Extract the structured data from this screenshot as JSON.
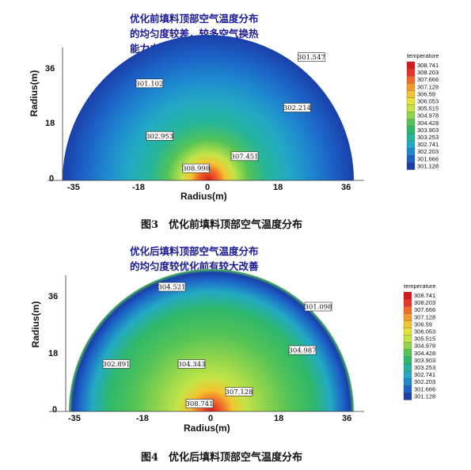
{
  "chart_data": [
    {
      "type": "heatmap",
      "title": "图3　优化前填料顶部空气温度分布",
      "note": [
        "优化前填料顶部空气温度分布",
        "的均匀度较差，较多空气换热",
        "能力未能有效发挥"
      ],
      "xlabel": "Radius(m)",
      "ylabel": "Radius(m)",
      "x_ticks": [
        "-35",
        "-18",
        "0",
        "18",
        "36"
      ],
      "y_ticks": [
        "0",
        "18",
        "36"
      ],
      "xlim": [
        -36,
        36
      ],
      "ylim": [
        0,
        36
      ],
      "legend_title": "temperature",
      "legend_levels": [
        "308.741",
        "308.203",
        "307.666",
        "307.128",
        "306.59",
        "306.053",
        "305.515",
        "304.978",
        "304.428",
        "303.903",
        "303.253",
        "302.741",
        "302.203",
        "301.666",
        "301.128"
      ],
      "annotations": [
        {
          "x": -14.5,
          "y": 24,
          "value": "301.102"
        },
        {
          "x": 25.5,
          "y": 30.5,
          "value": "301.547"
        },
        {
          "x": 22,
          "y": 18,
          "value": "302.214"
        },
        {
          "x": -12,
          "y": 11,
          "value": "302.953"
        },
        {
          "x": 9,
          "y": 6,
          "value": "307.451"
        },
        {
          "x": -3,
          "y": 3,
          "value": "308.998"
        }
      ]
    },
    {
      "type": "heatmap",
      "title": "图4　优化后填料顶部空气温度分布",
      "note": [
        "优化后填料顶部空气温度分布",
        "的均匀度较优化前有较大改善"
      ],
      "xlabel": "Radius(m)",
      "ylabel": "Radius(m)",
      "x_ticks": [
        "-35",
        "-18",
        "0",
        "18",
        "36"
      ],
      "y_ticks": [
        "0",
        "18",
        "36"
      ],
      "xlim": [
        -36,
        36
      ],
      "ylim": [
        0,
        36
      ],
      "legend_title": "temperature",
      "legend_levels": [
        "308.741",
        "308.203",
        "307.666",
        "307.128",
        "306.59",
        "306.053",
        "305.515",
        "304.978",
        "304.428",
        "303.903",
        "303.253",
        "302.741",
        "302.203",
        "301.666",
        "301.128"
      ],
      "annotations": [
        {
          "x": -10,
          "y": 31.5,
          "value": "304.521"
        },
        {
          "x": 27,
          "y": 26.5,
          "value": "301.098"
        },
        {
          "x": 23,
          "y": 15.5,
          "value": "304.987"
        },
        {
          "x": -24,
          "y": 12,
          "value": "302.891"
        },
        {
          "x": -5,
          "y": 12,
          "value": "304.343"
        },
        {
          "x": 7,
          "y": 5,
          "value": "307.128"
        },
        {
          "x": -3,
          "y": 2,
          "value": "308.741"
        }
      ]
    }
  ],
  "colors": {
    "scale": [
      "#d7191c",
      "#e8342a",
      "#f26b2a",
      "#f79a2c",
      "#f4c430",
      "#e8e33a",
      "#c3e447",
      "#8fd44d",
      "#52c357",
      "#2fb86b",
      "#26b59a",
      "#23a9c4",
      "#1e88d0",
      "#1c62c6",
      "#1a3fa8"
    ]
  }
}
